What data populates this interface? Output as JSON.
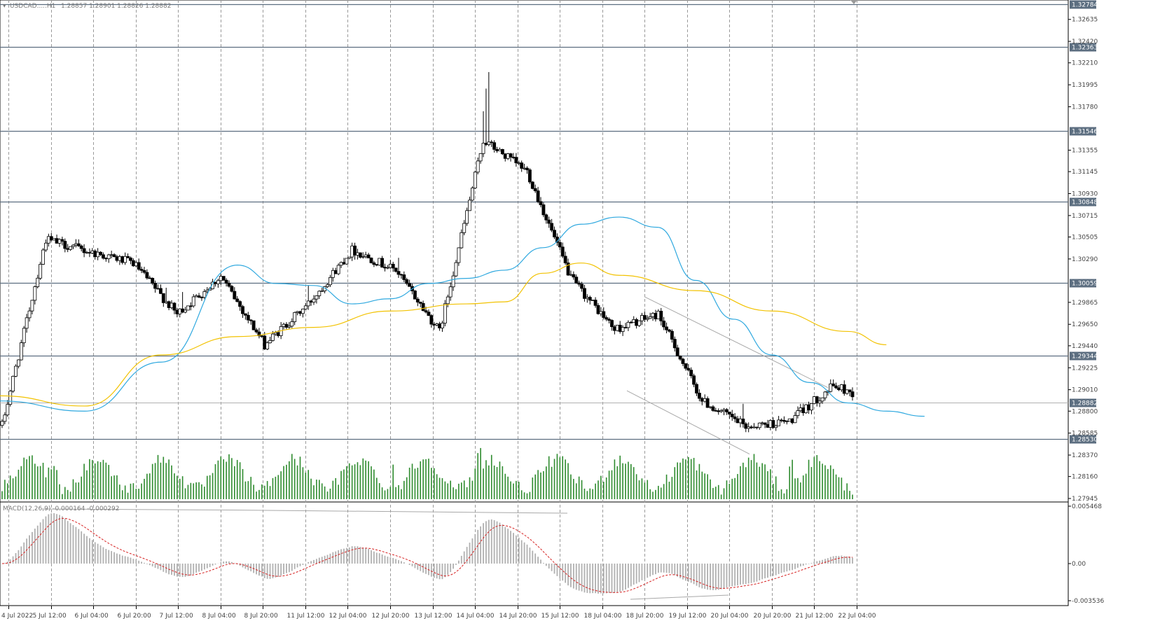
{
  "header": {
    "symbol_label": "USDCAD.....H1",
    "ohlc_label": "1.28857 1.28901 1.28826 1.28882",
    "macd_label": "MACD(12,26,9) -0.000164 -0.000292"
  },
  "colors": {
    "background": "#ffffff",
    "candle_outline": "#000000",
    "candle_bull_fill": "#ffffff",
    "candle_bear_fill": "#000000",
    "sma_fast": "#2ea8df",
    "sma_slow": "#f2c200",
    "volume_bars": "#2e8b2e",
    "level_lines": "#5c6e80",
    "level_label_bg": "#5c6e80",
    "current_price_line": "#b0b0b0",
    "current_price_label_bg": "#5c6e80",
    "macd_histogram": "#b0b0b0",
    "macd_signal": "#d62020",
    "grid": "#9a9a9a",
    "trendline": "#a8a8a8"
  },
  "chart_data": [
    {
      "type": "candlestick",
      "title": "USDCAD.....H1",
      "timeframe": "H1",
      "y_axis_ticks": [
        "1.32635",
        "1.32420",
        "1.32210",
        "1.31995",
        "1.31780",
        "1.31355",
        "1.31145",
        "1.30930",
        "1.30715",
        "1.30505",
        "1.30290",
        "1.29865",
        "1.29650",
        "1.29440",
        "1.29225",
        "1.29010",
        "1.28800",
        "1.28585",
        "1.28370",
        "1.28160",
        "1.27945"
      ],
      "ylim": [
        1.27945,
        1.32784
      ],
      "x_axis_ticks": [
        "4 Jul 2022",
        "5 Jul 12:00",
        "6 Jul 04:00",
        "6 Jul 20:00",
        "7 Jul 12:00",
        "8 Jul 04:00",
        "8 Jul 20:00",
        "11 Jul 12:00",
        "12 Jul 04:00",
        "12 Jul 20:00",
        "13 Jul 12:00",
        "14 Jul 04:00",
        "14 Jul 20:00",
        "15 Jul 12:00",
        "18 Jul 04:00",
        "18 Jul 20:00",
        "19 Jul 12:00",
        "20 Jul 04:00",
        "20 Jul 20:00",
        "21 Jul 12:00",
        "22 Jul 04:00"
      ],
      "horizontal_levels": [
        "1.32784",
        "1.32363",
        "1.31546",
        "1.30848",
        "1.30059",
        "1.29344",
        "1.28530"
      ],
      "current_price": "1.28882",
      "key_points": [
        {
          "x": "4 Jul 2022",
          "close": 1.2866
        },
        {
          "x": "5 Jul 12:00",
          "close": 1.3048
        },
        {
          "x": "6 Jul 04:00",
          "close": 1.3036
        },
        {
          "x": "6 Jul 20:00",
          "close": 1.3025
        },
        {
          "x": "7 Jul 12:00",
          "close": 1.2975
        },
        {
          "x": "8 Jul 04:00",
          "close": 1.3012
        },
        {
          "x": "8 Jul 20:00",
          "close": 1.2945
        },
        {
          "x": "11 Jul 12:00",
          "close": 1.2985
        },
        {
          "x": "12 Jul 04:00",
          "close": 1.3038
        },
        {
          "x": "12 Jul 20:00",
          "close": 1.3018
        },
        {
          "x": "13 Jul 12:00",
          "close": 1.2958
        },
        {
          "x": "14 Jul 04:00",
          "close": 1.3145
        },
        {
          "x": "14 Jul 20:00",
          "close": 1.3115
        },
        {
          "x": "15 Jul 12:00",
          "close": 1.301
        },
        {
          "x": "18 Jul 04:00",
          "close": 1.296
        },
        {
          "x": "18 Jul 20:00",
          "close": 1.2975
        },
        {
          "x": "19 Jul 12:00",
          "close": 1.289
        },
        {
          "x": "20 Jul 04:00",
          "close": 1.2865
        },
        {
          "x": "20 Jul 20:00",
          "close": 1.287
        },
        {
          "x": "21 Jul 12:00",
          "close": 1.2905
        },
        {
          "x": "22 Jul 04:00",
          "close": 1.2888
        }
      ],
      "series": [
        {
          "type": "line",
          "style": "moving-average",
          "color": "#2ea8df",
          "points": [
            [
              0,
              1.289
            ],
            [
              2,
              1.288
            ],
            [
              4,
              1.2928
            ],
            [
              6,
              1.3023
            ],
            [
              7,
              1.3005
            ],
            [
              8,
              1.3003
            ],
            [
              9,
              1.2985
            ],
            [
              10,
              1.299
            ],
            [
              11,
              1.3005
            ],
            [
              12,
              1.301
            ],
            [
              13,
              1.3018
            ],
            [
              14,
              1.304
            ],
            [
              15,
              1.3063
            ],
            [
              16,
              1.307
            ],
            [
              17,
              1.306
            ],
            [
              18,
              1.3008
            ],
            [
              19,
              1.297
            ],
            [
              20,
              1.2935
            ],
            [
              21,
              1.2908
            ],
            [
              22,
              1.2888
            ],
            [
              23,
              1.288
            ],
            [
              24,
              1.2875
            ]
          ]
        },
        {
          "type": "line",
          "style": "moving-average",
          "color": "#f2c200",
          "points": [
            [
              0,
              1.2895
            ],
            [
              2,
              1.2885
            ],
            [
              4,
              1.2935
            ],
            [
              6,
              1.2953
            ],
            [
              8,
              1.2962
            ],
            [
              10,
              1.2978
            ],
            [
              12,
              1.2985
            ],
            [
              13,
              1.2987
            ],
            [
              14,
              1.3015
            ],
            [
              15,
              1.3025
            ],
            [
              16,
              1.3013
            ],
            [
              18,
              1.2998
            ],
            [
              20,
              1.2978
            ],
            [
              22,
              1.2958
            ],
            [
              23,
              1.2945
            ]
          ]
        }
      ]
    },
    {
      "type": "bar",
      "title": "Volume",
      "note": "tick volume histogram under price panel"
    },
    {
      "type": "bar",
      "title": "MACD(12,26,9)",
      "y_axis_ticks": [
        "0.005468",
        "0.00",
        "-0.003536"
      ],
      "ylim": [
        -0.003536,
        0.005468
      ]
    }
  ]
}
